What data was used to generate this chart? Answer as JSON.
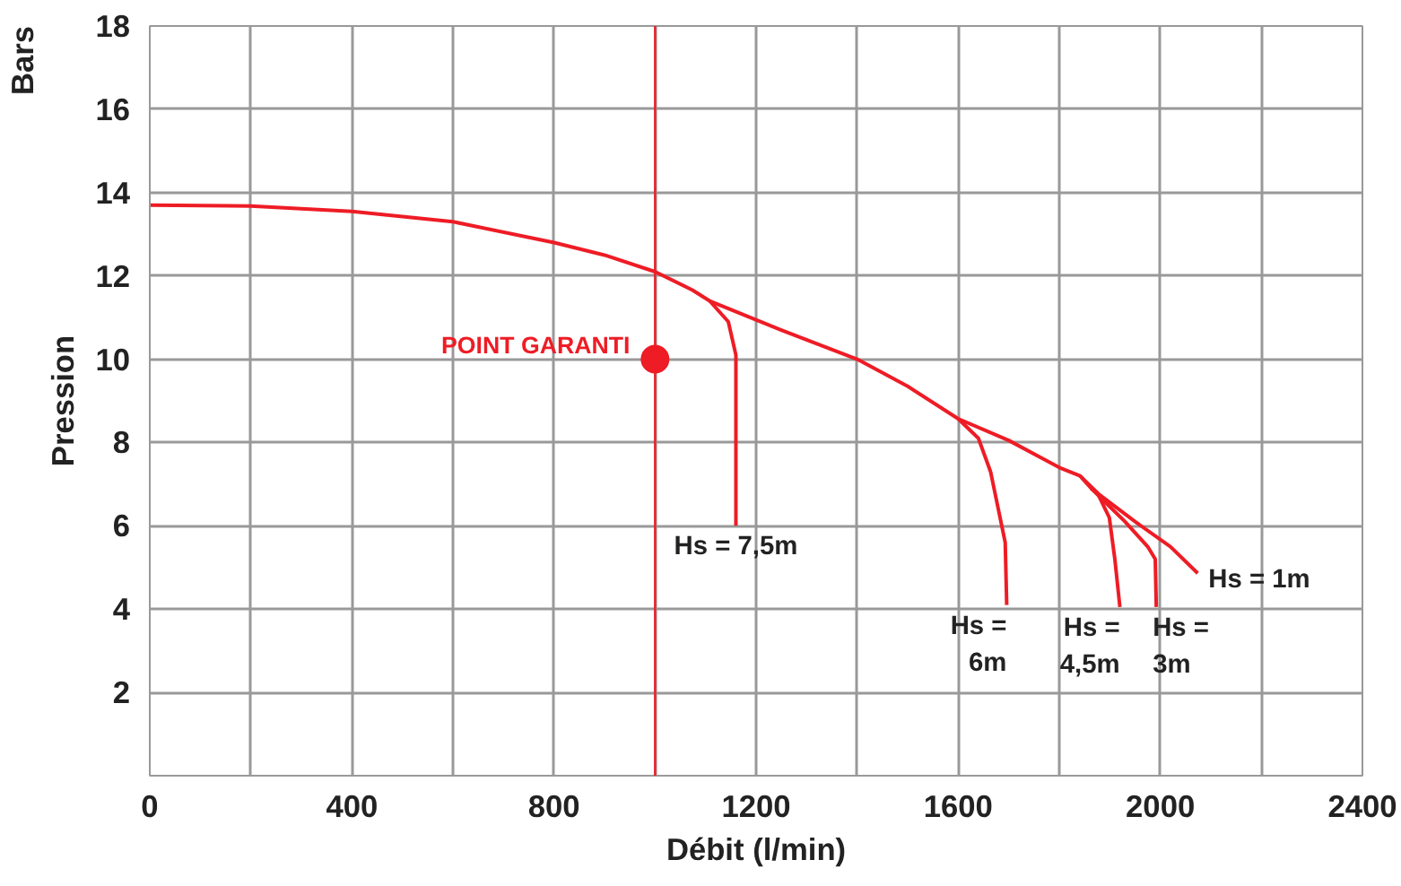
{
  "chart_data": {
    "type": "line",
    "xlabel": "Débit (l/min)",
    "ylabel": "Pression",
    "xlim": [
      0,
      2400
    ],
    "ylim": [
      0,
      18
    ],
    "xticks": [
      0,
      {
        "value": 200,
        "label": null
      },
      400,
      {
        "value": 600,
        "label": null
      },
      800,
      {
        "value": 1000,
        "label": null
      },
      1200,
      {
        "value": 1400,
        "label": null
      },
      1600,
      {
        "value": 1800,
        "label": null
      },
      2000,
      {
        "value": 2200,
        "label": null
      },
      2400
    ],
    "yticks": [
      {
        "value": 0,
        "label": null
      },
      2,
      4,
      6,
      8,
      10,
      12,
      14,
      16,
      18
    ],
    "grid": true,
    "marker": "none",
    "line_style": "solid",
    "series": [
      {
        "color": "#ee1c25",
        "x": [
          0,
          200,
          400,
          600,
          800,
          900,
          1000,
          1074,
          1108,
          1250,
          1400,
          1500,
          1600,
          1700,
          1800,
          1841,
          1863,
          1950,
          2020,
          2074
        ],
        "values": [
          13.7,
          13.68,
          13.55,
          13.3,
          12.8,
          12.5,
          12.1,
          11.66,
          11.4,
          10.7,
          10.0,
          9.35,
          8.57,
          8.05,
          7.4,
          7.2,
          6.9,
          6.1,
          5.5,
          4.86
        ]
      },
      {
        "color": "#ee1c25",
        "x": [
          1108,
          1145,
          1160,
          1160
        ],
        "values": [
          11.4,
          10.9,
          10.1,
          6.0
        ]
      },
      {
        "color": "#ee1c25",
        "x": [
          1600,
          1640,
          1664,
          1693,
          1696
        ],
        "values": [
          8.57,
          8.1,
          7.3,
          5.6,
          4.1
        ]
      },
      {
        "color": "#ee1c25",
        "x": [
          1841,
          1875,
          1899,
          1910,
          1920
        ],
        "values": [
          7.2,
          6.8,
          6.2,
          5.2,
          4.05
        ]
      },
      {
        "color": "#ee1c25",
        "x": [
          1863,
          1930,
          1975,
          1990,
          1992
        ],
        "values": [
          6.9,
          6.1,
          5.5,
          5.2,
          4.05
        ]
      },
      {
        "type": "scatter",
        "marker": "circle",
        "color": "#ee1c25",
        "x": [
          1000
        ],
        "values": [
          10
        ]
      }
    ],
    "ref_lines": [
      {
        "axis": "x",
        "value": 1000,
        "color": "#ee1c25",
        "line_style": "solid"
      }
    ],
    "annotations": [
      "Bars",
      {
        "text": "POINT GARANTI",
        "x": 1000,
        "y": 10
      },
      {
        "text": "Hs = 7,5m",
        "x": 1160,
        "y": 6.0
      },
      {
        "text": "Hs =\n6m",
        "x": 1696,
        "y": 4.1
      },
      {
        "text": "Hs =\n4,5m",
        "x": 1920,
        "y": 4.05
      },
      {
        "text": "Hs =\n3m",
        "x": 1992,
        "y": 4.05
      },
      {
        "text": "Hs = 1m",
        "x": 2074,
        "y": 4.86
      }
    ]
  }
}
